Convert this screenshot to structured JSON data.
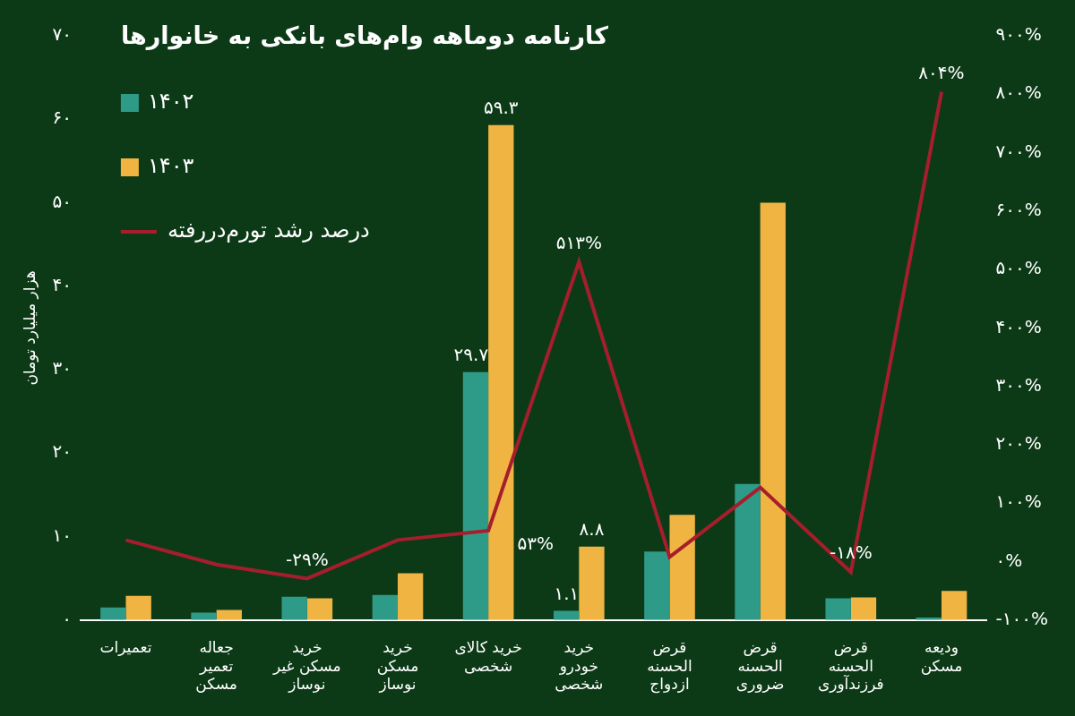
{
  "chart_data": {
    "type": "bar",
    "title": "کارنامه دوماهه وام‌های بانکی به خانوارها",
    "y_label": "هزار میلیارد تومان",
    "categories": [
      "تعمیرات",
      "جعاله\nتعمیر\nمسکن",
      "خرید\nمسکن غیر\nنوساز",
      "خرید\nمسکن\nنوساز",
      "خرید کالای\nشخصی",
      "خرید\nخودرو\nشخصی",
      "قرض\nالحسنه\nازدواج",
      "قرض\nالحسنه\nضروری",
      "قرض\nالحسنه\nفرزندآوری",
      "ودیعه\nمسکن"
    ],
    "series": [
      {
        "name": "۱۴۰۲",
        "color": "#2e9b89",
        "values": [
          1.5,
          0.9,
          2.8,
          3.0,
          29.7,
          1.1,
          8.2,
          16.3,
          2.6,
          0.3
        ],
        "value_labels": [
          null,
          null,
          null,
          null,
          "۲۹.۷",
          "۱.۱",
          null,
          null,
          null,
          null
        ]
      },
      {
        "name": "۱۴۰۳",
        "color": "#f0b443",
        "values": [
          2.9,
          1.2,
          2.6,
          5.6,
          59.3,
          8.8,
          12.6,
          50.0,
          2.7,
          3.5
        ],
        "value_labels": [
          null,
          null,
          null,
          null,
          "۵۹.۳",
          "۸.۸",
          null,
          null,
          null,
          null
        ]
      },
      {
        "name": "درصد رشد تورم‌دررفته",
        "type": "line",
        "axis": "y2",
        "color": "#a61e2d",
        "values": [
          37,
          -5,
          -29,
          37,
          53,
          513,
          8,
          127,
          -18,
          804
        ],
        "value_labels": [
          null,
          null,
          "-۲۹%",
          null,
          "۵۳%",
          "۵۱۳%",
          null,
          null,
          "-۱۸%",
          "۸۰۴%"
        ]
      }
    ],
    "ylim": [
      0,
      70
    ],
    "yticks": [
      {
        "value": 0,
        "label": "۰"
      },
      {
        "value": 10,
        "label": "۱۰"
      },
      {
        "value": 20,
        "label": "۲۰"
      },
      {
        "value": 30,
        "label": "۳۰"
      },
      {
        "value": 40,
        "label": "۴۰"
      },
      {
        "value": 50,
        "label": "۵۰"
      },
      {
        "value": 60,
        "label": "۶۰"
      },
      {
        "value": 70,
        "label": "۷۰"
      }
    ],
    "y2lim": [
      -100,
      900
    ],
    "y2ticks": [
      {
        "value": -100,
        "label": "-۱۰۰%"
      },
      {
        "value": 0,
        "label": "۰%"
      },
      {
        "value": 100,
        "label": "۱۰۰%"
      },
      {
        "value": 200,
        "label": "۲۰۰%"
      },
      {
        "value": 300,
        "label": "۳۰۰%"
      },
      {
        "value": 400,
        "label": "۴۰۰%"
      },
      {
        "value": 500,
        "label": "۵۰۰%"
      },
      {
        "value": 600,
        "label": "۶۰۰%"
      },
      {
        "value": 700,
        "label": "۷۰۰%"
      },
      {
        "value": 800,
        "label": "۸۰۰%"
      },
      {
        "value": 900,
        "label": "۹۰۰%"
      }
    ],
    "grid": false,
    "legend": "top-left",
    "data_labels": true
  }
}
